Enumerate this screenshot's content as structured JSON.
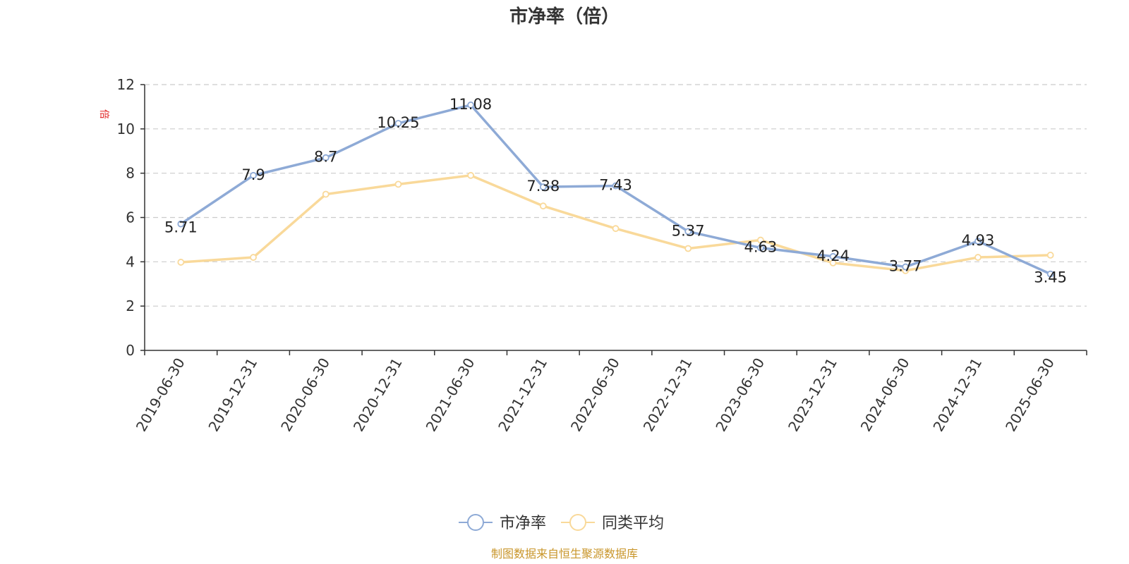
{
  "chart_data": {
    "type": "line",
    "title": "市净率（倍）",
    "ylabel": "倍",
    "ylim": [
      0,
      12
    ],
    "yticks": [
      0,
      2,
      4,
      6,
      8,
      10,
      12
    ],
    "grid": true,
    "legend_position": "bottom-center",
    "categories": [
      "2019-06-30",
      "2019-12-31",
      "2020-06-30",
      "2020-12-31",
      "2021-06-30",
      "2021-12-31",
      "2022-06-30",
      "2022-12-31",
      "2023-06-30",
      "2023-12-31",
      "2024-06-30",
      "2024-12-31",
      "2025-06-30"
    ],
    "series": [
      {
        "name": "市净率",
        "color": "#8eaad6",
        "values": [
          5.71,
          7.9,
          8.7,
          10.25,
          11.08,
          7.38,
          7.43,
          5.37,
          4.63,
          4.24,
          3.77,
          4.93,
          3.45
        ],
        "labels": [
          "5.71",
          "7.9",
          "8.7",
          "10.25",
          "11.08",
          "7.38",
          "7.43",
          "5.37",
          "4.63",
          "4.24",
          "3.77",
          "4.93",
          "3.45"
        ]
      },
      {
        "name": "同类平均",
        "color": "#f9d99a",
        "values": [
          3.98,
          4.2,
          7.05,
          7.5,
          7.9,
          6.52,
          5.5,
          4.6,
          4.98,
          3.95,
          3.6,
          4.2,
          4.3
        ]
      }
    ]
  },
  "source_note": "制图数据来自恒生聚源数据库"
}
